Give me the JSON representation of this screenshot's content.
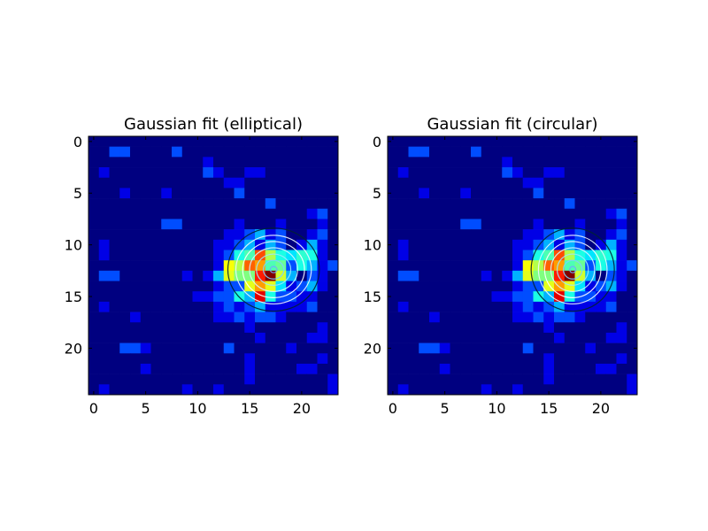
{
  "chart_data": [
    {
      "type": "heatmap",
      "title": "Gaussian fit (elliptical)",
      "xlabel": "",
      "ylabel": "",
      "xlim": [
        -0.5,
        23.5
      ],
      "ylim": [
        24.5,
        -0.5
      ],
      "xticks": [
        0,
        5,
        10,
        15,
        20
      ],
      "yticks": [
        0,
        5,
        10,
        15,
        20
      ],
      "colormap": "jet",
      "grid": false,
      "center": [
        17.3,
        12.4
      ],
      "contour_levels": [
        0.3,
        0.9,
        1.5,
        2.1,
        2.7,
        3.3,
        4.0
      ],
      "contour_colors": [
        "#6fa8ff",
        "#78d4ff",
        "#9ae8ff",
        "#d6f4ff",
        "#ffffff",
        "#eaf6ff",
        "#002233"
      ],
      "contour_aspect": 1.1
    },
    {
      "type": "heatmap",
      "title": "Gaussian fit (circular)",
      "xlabel": "",
      "ylabel": "",
      "xlim": [
        -0.5,
        23.5
      ],
      "ylim": [
        24.5,
        -0.5
      ],
      "xticks": [
        0,
        5,
        10,
        15,
        20
      ],
      "yticks": [
        0,
        5,
        10,
        15,
        20
      ],
      "colormap": "jet",
      "grid": false,
      "center": [
        17.3,
        12.4
      ],
      "contour_levels": [
        0.3,
        0.9,
        1.5,
        2.1,
        2.7,
        3.3,
        4.0
      ],
      "contour_colors": [
        "#6fa8ff",
        "#78d4ff",
        "#9ae8ff",
        "#d6f4ff",
        "#ffffff",
        "#eaf6ff",
        "#002233"
      ],
      "contour_aspect": 1.0
    }
  ],
  "image_values": [
    [
      0,
      0,
      0,
      0,
      0,
      0,
      0,
      0,
      0,
      0,
      0,
      0,
      0,
      0,
      0,
      0,
      0,
      0,
      0,
      0,
      0,
      0,
      0,
      0
    ],
    [
      0,
      0,
      0.2,
      0.2,
      0,
      0,
      0,
      0,
      0.2,
      0,
      0,
      0,
      0,
      0,
      0,
      0,
      0,
      0,
      0,
      0,
      0,
      0,
      0,
      0
    ],
    [
      0,
      0,
      0,
      0,
      0,
      0,
      0,
      0,
      0,
      0,
      0,
      0.1,
      0,
      0,
      0,
      0,
      0,
      0,
      0,
      0,
      0,
      0,
      0,
      0
    ],
    [
      0,
      0.1,
      0,
      0,
      0,
      0,
      0,
      0,
      0,
      0,
      0,
      0.2,
      0.1,
      0,
      0,
      0.1,
      0.1,
      0,
      0,
      0,
      0,
      0,
      0,
      0
    ],
    [
      0,
      0,
      0,
      0,
      0,
      0,
      0,
      0,
      0,
      0,
      0,
      0,
      0,
      0.1,
      0.1,
      0,
      0,
      0,
      0,
      0,
      0,
      0,
      0,
      0
    ],
    [
      0,
      0,
      0,
      0.1,
      0,
      0,
      0,
      0.1,
      0,
      0,
      0,
      0,
      0,
      0,
      0.2,
      0,
      0,
      0,
      0,
      0,
      0,
      0,
      0,
      0
    ],
    [
      0,
      0,
      0,
      0,
      0,
      0,
      0,
      0,
      0,
      0,
      0,
      0,
      0,
      0,
      0,
      0,
      0,
      0.2,
      0,
      0,
      0,
      0,
      0,
      0
    ],
    [
      0,
      0,
      0,
      0,
      0,
      0,
      0,
      0,
      0,
      0,
      0,
      0,
      0,
      0,
      0,
      0,
      0,
      0,
      0,
      0,
      0,
      0.1,
      0.2,
      0
    ],
    [
      0,
      0,
      0,
      0,
      0,
      0,
      0,
      0.2,
      0.2,
      0,
      0,
      0,
      0,
      0,
      0.1,
      0,
      0,
      0,
      0.1,
      0,
      0,
      0,
      0.1,
      0
    ],
    [
      0,
      0,
      0,
      0,
      0,
      0,
      0,
      0,
      0,
      0,
      0,
      0,
      0,
      0.1,
      0.1,
      0.2,
      0.3,
      0.1,
      0.2,
      0,
      0,
      0.1,
      0.2,
      0
    ],
    [
      0,
      0.1,
      0,
      0,
      0,
      0,
      0,
      0,
      0,
      0,
      0,
      0,
      0.1,
      0.1,
      0.2,
      0.3,
      0.1,
      0.3,
      0.2,
      0,
      0.1,
      0.3,
      0.1,
      0
    ],
    [
      0,
      0.1,
      0,
      0,
      0,
      0,
      0,
      0,
      0,
      0,
      0,
      0,
      0.1,
      0.2,
      0.4,
      0.5,
      0.4,
      0.2,
      0.4,
      0.2,
      0.1,
      0.4,
      0.1,
      0
    ],
    [
      0,
      0,
      0,
      0,
      0,
      0,
      0,
      0,
      0,
      0,
      0,
      0,
      0.1,
      0.2,
      0.5,
      0.6,
      0.8,
      0.5,
      0.3,
      0.2,
      0.1,
      0.3,
      0.1,
      0.2
    ],
    [
      0,
      0.2,
      0.2,
      0,
      0,
      0,
      0,
      0,
      0,
      0.1,
      0,
      0.1,
      0.3,
      0.6,
      0.5,
      0.3,
      0.9,
      0.5,
      0.5,
      0.3,
      0,
      0.2,
      0.1,
      0
    ],
    [
      0,
      0,
      0,
      0,
      0,
      0,
      0,
      0,
      0,
      0,
      0,
      0,
      0.1,
      0.2,
      0.2,
      0.6,
      0.7,
      0.4,
      0.2,
      0.1,
      0.2,
      0.3,
      0.1,
      0
    ],
    [
      0,
      0,
      0,
      0,
      0,
      0,
      0,
      0,
      0,
      0,
      0.1,
      0.1,
      0.2,
      0.2,
      0.4,
      0.3,
      0.9,
      0.4,
      0.2,
      0.2,
      0.1,
      0.1,
      0,
      0
    ],
    [
      0,
      0.1,
      0,
      0,
      0,
      0,
      0,
      0,
      0,
      0,
      0,
      0,
      0.1,
      0.2,
      0.1,
      0.2,
      0.3,
      0.1,
      0.1,
      0.1,
      0.1,
      0.2,
      0,
      0
    ],
    [
      0,
      0,
      0,
      0,
      0.1,
      0,
      0,
      0,
      0,
      0,
      0,
      0,
      0.1,
      0.1,
      0.2,
      0.1,
      0.2,
      0.2,
      0.1,
      0,
      0,
      0,
      0,
      0
    ],
    [
      0,
      0,
      0,
      0,
      0,
      0,
      0,
      0,
      0,
      0,
      0,
      0,
      0,
      0,
      0,
      0.1,
      0,
      0,
      0,
      0,
      0,
      0,
      0.1,
      0
    ],
    [
      0,
      0,
      0,
      0,
      0,
      0,
      0,
      0,
      0,
      0,
      0,
      0,
      0,
      0,
      0,
      0,
      0.1,
      0,
      0,
      0,
      0,
      0.1,
      0.1,
      0
    ],
    [
      0,
      0,
      0,
      0.2,
      0.2,
      0.1,
      0,
      0,
      0,
      0,
      0,
      0,
      0,
      0.2,
      0,
      0,
      0,
      0,
      0,
      0.1,
      0,
      0,
      0,
      0
    ],
    [
      0,
      0,
      0,
      0,
      0,
      0,
      0,
      0,
      0,
      0,
      0,
      0,
      0,
      0,
      0,
      0.1,
      0,
      0,
      0,
      0,
      0,
      0,
      0.1,
      0
    ],
    [
      0,
      0,
      0,
      0,
      0,
      0.1,
      0,
      0,
      0,
      0,
      0,
      0,
      0,
      0,
      0,
      0.1,
      0,
      0,
      0,
      0,
      0.1,
      0.1,
      0,
      0
    ],
    [
      0,
      0,
      0,
      0,
      0,
      0,
      0,
      0,
      0,
      0,
      0,
      0,
      0,
      0,
      0,
      0.1,
      0,
      0,
      0,
      0,
      0,
      0,
      0,
      0.1
    ],
    [
      0,
      0.1,
      0,
      0,
      0,
      0,
      0,
      0,
      0,
      0.1,
      0,
      0,
      0.1,
      0,
      0,
      0,
      0,
      0,
      0,
      0,
      0,
      0,
      0,
      0.1
    ]
  ],
  "peak_cells": [
    {
      "x": 15,
      "y": 12,
      "v": 0.78
    },
    {
      "x": 16,
      "y": 12,
      "v": 0.72
    },
    {
      "x": 17,
      "y": 12,
      "v": 0.45
    },
    {
      "x": 18,
      "y": 12,
      "v": 0.48
    },
    {
      "x": 16,
      "y": 11,
      "v": 0.8
    },
    {
      "x": 15,
      "y": 13,
      "v": 0.5
    },
    {
      "x": 16,
      "y": 13,
      "v": 0.85
    },
    {
      "x": 17,
      "y": 13,
      "v": 1.0
    },
    {
      "x": 18,
      "y": 13,
      "v": 0.58
    },
    {
      "x": 19,
      "y": 13,
      "v": 0.3
    },
    {
      "x": 14,
      "y": 12,
      "v": 0.55
    },
    {
      "x": 13,
      "y": 12,
      "v": 0.62
    },
    {
      "x": 16,
      "y": 14,
      "v": 0.72
    },
    {
      "x": 17,
      "y": 14,
      "v": 0.6
    },
    {
      "x": 17,
      "y": 11,
      "v": 0.55
    },
    {
      "x": 19,
      "y": 11,
      "v": 0.35
    },
    {
      "x": 20,
      "y": 11,
      "v": 0.42
    },
    {
      "x": 20,
      "y": 12,
      "v": 0.4
    },
    {
      "x": 15,
      "y": 11,
      "v": 0.45
    },
    {
      "x": 17,
      "y": 10,
      "v": 0.3
    },
    {
      "x": 14,
      "y": 11,
      "v": 0.4
    },
    {
      "x": 18,
      "y": 14,
      "v": 0.35
    }
  ]
}
